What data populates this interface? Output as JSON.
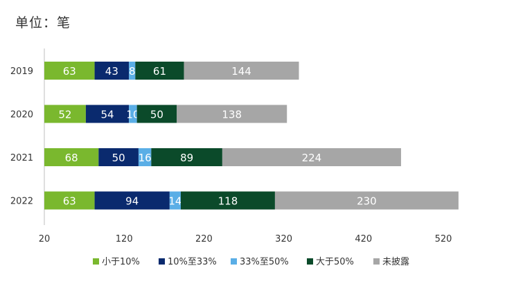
{
  "unit_label": "单位：笔",
  "chart_data": {
    "type": "bar",
    "orientation": "horizontal",
    "stacked": true,
    "categories": [
      "2019",
      "2020",
      "2021",
      "2022"
    ],
    "series": [
      {
        "name": "小于10%",
        "color": "#7ab82e",
        "values": [
          63,
          52,
          68,
          63
        ]
      },
      {
        "name": "10%至33%",
        "color": "#0a2a6e",
        "values": [
          43,
          54,
          50,
          94
        ]
      },
      {
        "name": "33%至50%",
        "color": "#5aaee6",
        "values": [
          8,
          10,
          16,
          14
        ]
      },
      {
        "name": "大于50%",
        "color": "#0b4a2a",
        "values": [
          61,
          50,
          89,
          118
        ]
      },
      {
        "name": "未披露",
        "color": "#a6a6a6",
        "values": [
          144,
          138,
          224,
          230
        ]
      }
    ],
    "xlim": [
      20,
      520
    ],
    "xticks": [
      "20",
      "120",
      "220",
      "320",
      "420",
      "520"
    ],
    "grid": false,
    "legend": "bottom"
  }
}
